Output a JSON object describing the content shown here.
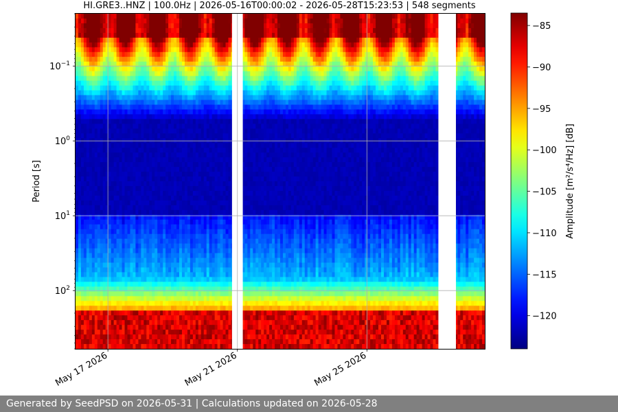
{
  "chart_data": {
    "type": "heatmap",
    "title": "HI.GRE3..HNZ | 100.0Hz | 2026-05-16T00:00:02 - 2026-05-28T15:23:53 | 548 segments",
    "xlabel": "",
    "ylabel": "Period [s]",
    "y_scale": "log",
    "y_inverted": true,
    "ylim": [
      0.02,
      600
    ],
    "xlim": [
      "2026-05-16T00:00:02",
      "2026-05-28T15:23:53"
    ],
    "x_ticks": [
      {
        "date": "2026-05-17",
        "label": "May 17 2026"
      },
      {
        "date": "2026-05-21",
        "label": "May 21 2026"
      },
      {
        "date": "2026-05-25",
        "label": "May 25 2026"
      }
    ],
    "y_ticks": [
      {
        "value": 0.1,
        "base": "10",
        "exp": "−1"
      },
      {
        "value": 1,
        "base": "10",
        "exp": "0"
      },
      {
        "value": 10,
        "base": "10",
        "exp": "1"
      },
      {
        "value": 100,
        "base": "10",
        "exp": "2"
      }
    ],
    "colorbar": {
      "label": "Amplitude [m²/s⁴/Hz] [dB]",
      "colormap": "jet",
      "range": [
        -124,
        -83.5
      ],
      "ticks": [
        -85,
        -90,
        -95,
        -100,
        -105,
        -110,
        -115,
        -120
      ],
      "tick_labels": [
        "−85",
        "−90",
        "−95",
        "−100",
        "−105",
        "−110",
        "−115",
        "−120"
      ]
    },
    "data_gaps": [
      {
        "start": "2026-05-20T20:00:00",
        "end": "2026-05-21T04:00:00"
      },
      {
        "start": "2026-05-27T05:00:00",
        "end": "2026-05-27T18:00:00"
      }
    ],
    "grid": true
  },
  "footer": {
    "text": "Generated by SeedPSD on 2026-05-31 | Calculations updated on 2026-05-28"
  }
}
